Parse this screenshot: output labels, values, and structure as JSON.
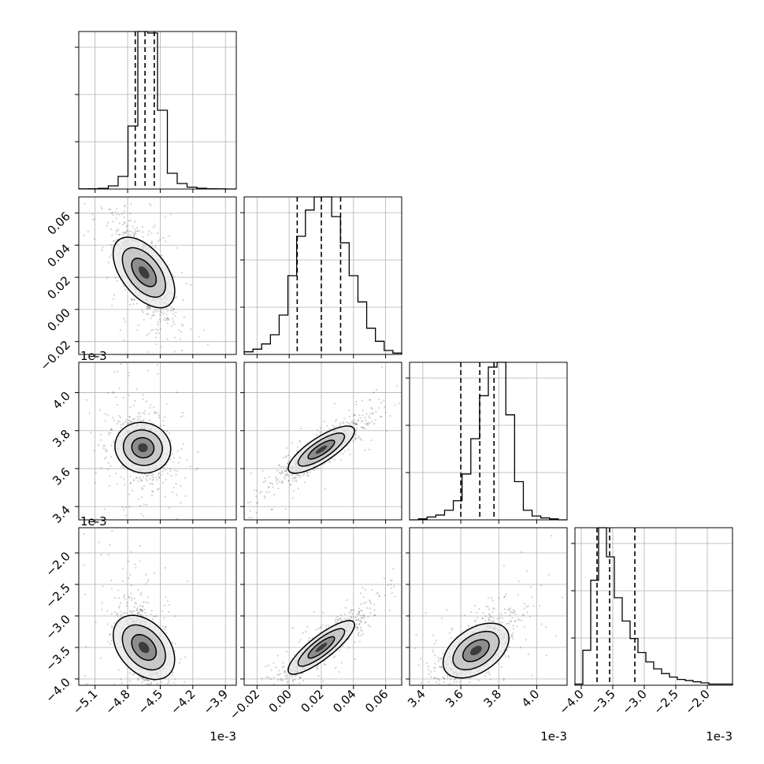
{
  "chart_data": {
    "type": "corner",
    "parameters": [
      {
        "offset": "1e-3",
        "range": [
          -5.25,
          -3.8
        ],
        "ticks": [
          -5.1,
          -4.8,
          -4.5,
          -4.2,
          -3.9
        ],
        "tick_labels": [
          "−5.1",
          "−4.8",
          "−4.5",
          "−4.2",
          "−3.9"
        ]
      },
      {
        "offset": "",
        "range": [
          -0.028,
          0.07
        ],
        "ticks": [
          -0.02,
          0.0,
          0.02,
          0.04,
          0.06
        ],
        "tick_labels": [
          "−0.02",
          "0.00",
          "0.02",
          "0.04",
          "0.06"
        ]
      },
      {
        "offset": "1e-3",
        "range": [
          3.33,
          4.16
        ],
        "ticks": [
          3.4,
          3.6,
          3.8,
          4.0
        ],
        "tick_labels": [
          "3.4",
          "3.6",
          "3.8",
          "4.0"
        ]
      },
      {
        "offset": "1e-3",
        "range": [
          -4.1,
          -1.6
        ],
        "ticks": [
          -4.0,
          -3.5,
          -3.0,
          -2.5,
          -2.0
        ],
        "tick_labels": [
          "−4.0",
          "−3.5",
          "−3.0",
          "−2.5",
          "−2.0"
        ]
      }
    ],
    "histograms": [
      {
        "counts": [
          1,
          2,
          4,
          20,
          80,
          400,
          1000,
          990,
          500,
          100,
          35,
          12,
          5,
          2,
          1,
          0
        ],
        "quantiles": [
          -4.73,
          -4.64,
          -4.555
        ]
      },
      {
        "counts": [
          2,
          4,
          8,
          15,
          30,
          60,
          90,
          110,
          120,
          120,
          105,
          85,
          60,
          40,
          20,
          10,
          3,
          1
        ],
        "quantiles": [
          0.005,
          0.02,
          0.032
        ]
      },
      {
        "counts": [
          0,
          1,
          3,
          5,
          10,
          20,
          48,
          85,
          130,
          160,
          165,
          110,
          40,
          10,
          4,
          2,
          1,
          0
        ],
        "quantiles": [
          3.6,
          3.7,
          3.775
        ]
      },
      {
        "counts": [
          1,
          30,
          90,
          135,
          110,
          75,
          55,
          40,
          28,
          20,
          14,
          10,
          7,
          5,
          4,
          3,
          2,
          1,
          1,
          1
        ],
        "quantiles": [
          -3.75,
          -3.55,
          -3.15
        ]
      }
    ],
    "pairs": [
      {
        "x_param": 0,
        "y_param": 1,
        "center": [
          -4.65,
          0.023
        ],
        "spread": [
          0.12,
          0.015
        ],
        "correlation": -0.7
      },
      {
        "x_param": 0,
        "y_param": 2,
        "center": [
          -4.66,
          3.71
        ],
        "spread": [
          0.1,
          0.08
        ],
        "correlation": -0.2
      },
      {
        "x_param": 1,
        "y_param": 2,
        "center": [
          0.02,
          3.7
        ],
        "spread": [
          0.013,
          0.08
        ],
        "correlation": 0.9
      },
      {
        "x_param": 0,
        "y_param": 3,
        "center": [
          -4.65,
          -3.5
        ],
        "spread": [
          0.1,
          0.35
        ],
        "correlation": -0.55
      },
      {
        "x_param": 1,
        "y_param": 3,
        "center": [
          0.02,
          -3.5
        ],
        "spread": [
          0.013,
          0.28
        ],
        "correlation": 0.92
      },
      {
        "x_param": 2,
        "y_param": 3,
        "center": [
          3.68,
          -3.55
        ],
        "spread": [
          0.09,
          0.28
        ],
        "correlation": 0.65
      }
    ],
    "grid": true,
    "legend": "none"
  }
}
